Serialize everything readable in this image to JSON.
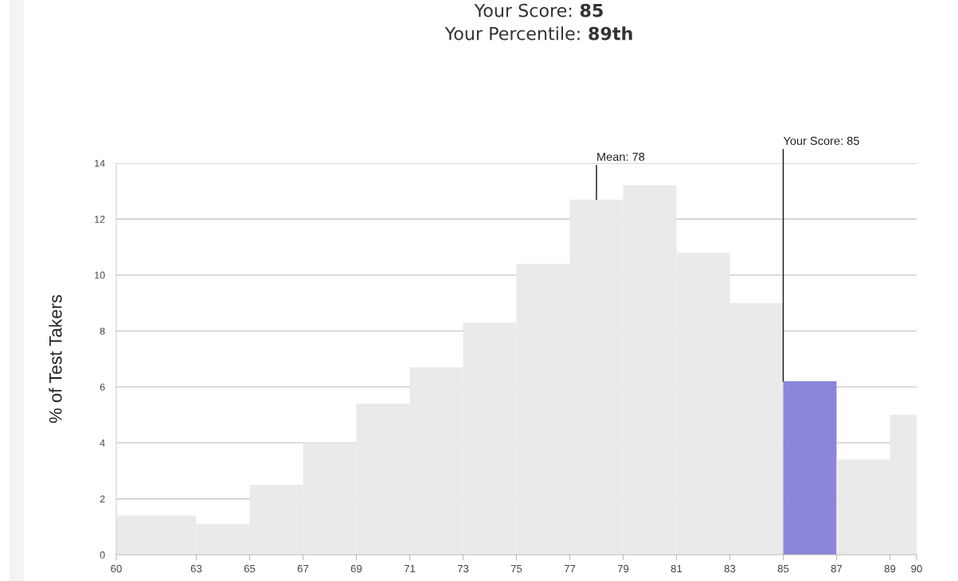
{
  "chart_data": {
    "type": "histogram",
    "title": "Your Score: 85",
    "subtitle": "Your Percentile: 89th",
    "ylabel": "% of Test Takers",
    "bins": [
      60,
      63,
      65,
      67,
      69,
      71,
      73,
      75,
      77,
      79,
      81,
      83,
      85,
      87,
      89,
      90
    ],
    "values": [
      1.4,
      1.1,
      2.5,
      4.0,
      5.4,
      6.7,
      8.3,
      10.4,
      12.7,
      13.2,
      10.8,
      9.0,
      6.2,
      3.4,
      5.0
    ],
    "colors": [
      "#eaeaea",
      "#eaeaea",
      "#eaeaea",
      "#eaeaea",
      "#eaeaea",
      "#eaeaea",
      "#eaeaea",
      "#eaeaea",
      "#eaeaea",
      "#eaeaea",
      "#eaeaea",
      "#eaeaea",
      "#8c86d8",
      "#eaeaea",
      "#eaeaea"
    ],
    "xlim": [
      60,
      90
    ],
    "xticks": [
      60,
      63,
      65,
      67,
      69,
      71,
      73,
      75,
      77,
      79,
      81,
      83,
      85,
      87,
      89,
      90
    ],
    "ylim": [
      0,
      14
    ],
    "yticks": [
      0,
      2,
      4,
      6,
      8,
      10,
      12,
      14
    ],
    "grid": "y",
    "annotations": [
      {
        "text": "Mean: 78",
        "x": 78,
        "y": 12.7
      },
      {
        "text": "Your Score: 85",
        "x": 85,
        "y": 6.2
      }
    ]
  }
}
